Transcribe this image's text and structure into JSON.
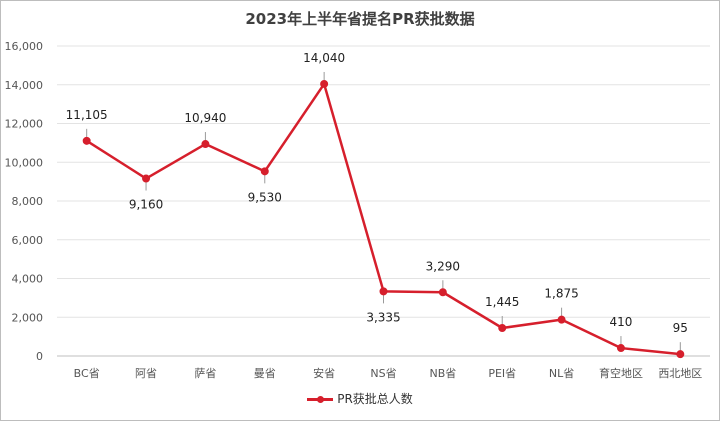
{
  "chart_data": {
    "type": "line",
    "title": "2023年上半年省提名PR获批数据",
    "categories": [
      "BC省",
      "阿省",
      "萨省",
      "曼省",
      "安省",
      "NS省",
      "NB省",
      "PEI省",
      "NL省",
      "育空地区",
      "西北地区"
    ],
    "series": [
      {
        "name": "PR获批总人数",
        "values": [
          11105,
          9160,
          10940,
          9530,
          14040,
          3335,
          3290,
          1445,
          1875,
          410,
          95
        ]
      }
    ],
    "data_labels": [
      "11,105",
      "9,160",
      "10,940",
      "9,530",
      "14,040",
      "3,335",
      "3,290",
      "1,445",
      "1,875",
      "410",
      "95"
    ],
    "y_ticks": [
      "0",
      "2,000",
      "4,000",
      "6,000",
      "8,000",
      "10,000",
      "12,000",
      "14,000",
      "16,000"
    ],
    "ylim": [
      0,
      16000
    ],
    "grid": true,
    "legend_position": "bottom",
    "line_color": "#d61f2c"
  }
}
